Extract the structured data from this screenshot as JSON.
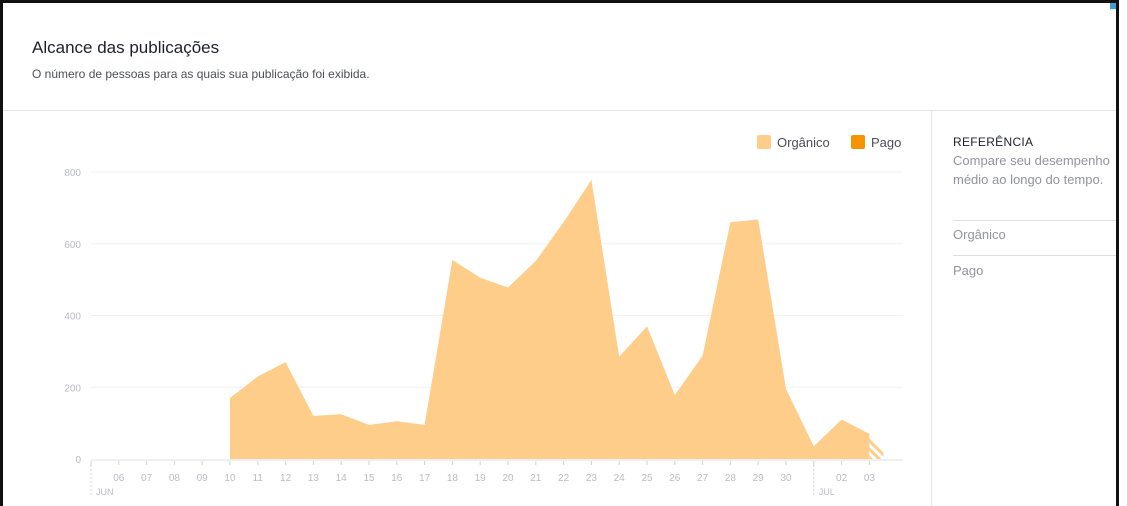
{
  "header": {
    "title": "Alcance das publicações",
    "subtitle": "O número de pessoas para as quais sua publicação foi exibida."
  },
  "legend": {
    "organic_label": "Orgânico",
    "paid_label": "Pago"
  },
  "sidebar": {
    "title": "REFERÊNCIA",
    "description": "Compare seu desempenho médio ao longo do tempo.",
    "items": [
      "Orgânico",
      "Pago"
    ]
  },
  "colors": {
    "organic": "#fdcd89",
    "paid": "#f69400",
    "grid": "#f0f0f0",
    "tick_text": "#b8bcc2"
  },
  "chart_data": {
    "type": "area",
    "title": "",
    "xlabel": "",
    "ylabel": "",
    "ylim": [
      0,
      800
    ],
    "yticks": [
      0,
      200,
      400,
      600,
      800
    ],
    "x_ticks": [
      {
        "day": 5,
        "label": ""
      },
      {
        "day": 6,
        "label": "06"
      },
      {
        "day": 7,
        "label": "07"
      },
      {
        "day": 8,
        "label": "08"
      },
      {
        "day": 9,
        "label": "09"
      },
      {
        "day": 10,
        "label": "10"
      },
      {
        "day": 11,
        "label": "11"
      },
      {
        "day": 12,
        "label": "12"
      },
      {
        "day": 13,
        "label": "13"
      },
      {
        "day": 14,
        "label": "14"
      },
      {
        "day": 15,
        "label": "15"
      },
      {
        "day": 16,
        "label": "16"
      },
      {
        "day": 17,
        "label": "17"
      },
      {
        "day": 18,
        "label": "18"
      },
      {
        "day": 19,
        "label": "19"
      },
      {
        "day": 20,
        "label": "20"
      },
      {
        "day": 21,
        "label": "21"
      },
      {
        "day": 22,
        "label": "22"
      },
      {
        "day": 23,
        "label": "23"
      },
      {
        "day": 24,
        "label": "24"
      },
      {
        "day": 25,
        "label": "25"
      },
      {
        "day": 26,
        "label": "26"
      },
      {
        "day": 27,
        "label": "27"
      },
      {
        "day": 28,
        "label": "28"
      },
      {
        "day": 29,
        "label": "29"
      },
      {
        "day": 30,
        "label": "30"
      },
      {
        "day": 31,
        "label": ""
      },
      {
        "day": 32,
        "label": "02"
      },
      {
        "day": 33,
        "label": "03"
      }
    ],
    "month_labels": [
      {
        "day": 5,
        "label": "JUN"
      },
      {
        "day": 31,
        "label": "JUL"
      }
    ],
    "series": [
      {
        "name": "Orgânico",
        "points": [
          [
            10,
            170
          ],
          [
            11,
            230
          ],
          [
            12,
            270
          ],
          [
            13,
            120
          ],
          [
            14,
            125
          ],
          [
            15,
            95
          ],
          [
            16,
            105
          ],
          [
            17,
            95
          ],
          [
            18,
            555
          ],
          [
            19,
            505
          ],
          [
            20,
            478
          ],
          [
            21,
            552
          ],
          [
            22,
            660
          ],
          [
            23,
            778
          ],
          [
            24,
            285
          ],
          [
            25,
            370
          ],
          [
            26,
            178
          ],
          [
            27,
            288
          ],
          [
            28,
            660
          ],
          [
            29,
            668
          ],
          [
            30,
            195
          ],
          [
            31,
            35
          ],
          [
            32,
            110
          ],
          [
            33,
            70
          ]
        ],
        "partial_from_day": 33
      },
      {
        "name": "Pago",
        "points": []
      }
    ]
  }
}
